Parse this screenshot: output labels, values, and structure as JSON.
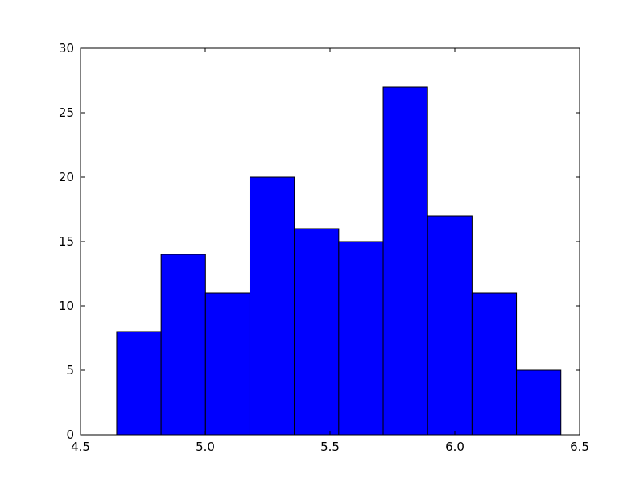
{
  "chart_data": {
    "type": "bar",
    "subtype": "histogram",
    "title": "",
    "xlabel": "",
    "ylabel": "",
    "bin_edges": [
      4.645,
      4.823,
      5.001,
      5.179,
      5.357,
      5.535,
      5.713,
      5.891,
      6.069,
      6.247,
      6.425
    ],
    "values": [
      8,
      14,
      11,
      20,
      16,
      15,
      27,
      17,
      11,
      5
    ],
    "xlim": [
      4.5,
      6.5
    ],
    "ylim": [
      0,
      30
    ],
    "xticks": [
      4.5,
      5.0,
      5.5,
      6.0,
      6.5
    ],
    "xtick_labels": [
      "4.5",
      "5.0",
      "5.5",
      "6.0",
      "6.5"
    ],
    "yticks": [
      0,
      5,
      10,
      15,
      20,
      25,
      30
    ],
    "ytick_labels": [
      "0",
      "5",
      "10",
      "15",
      "20",
      "25",
      "30"
    ],
    "bar_color": "#0000ff",
    "edge_color": "#000000",
    "grid": false,
    "legend": "none"
  }
}
